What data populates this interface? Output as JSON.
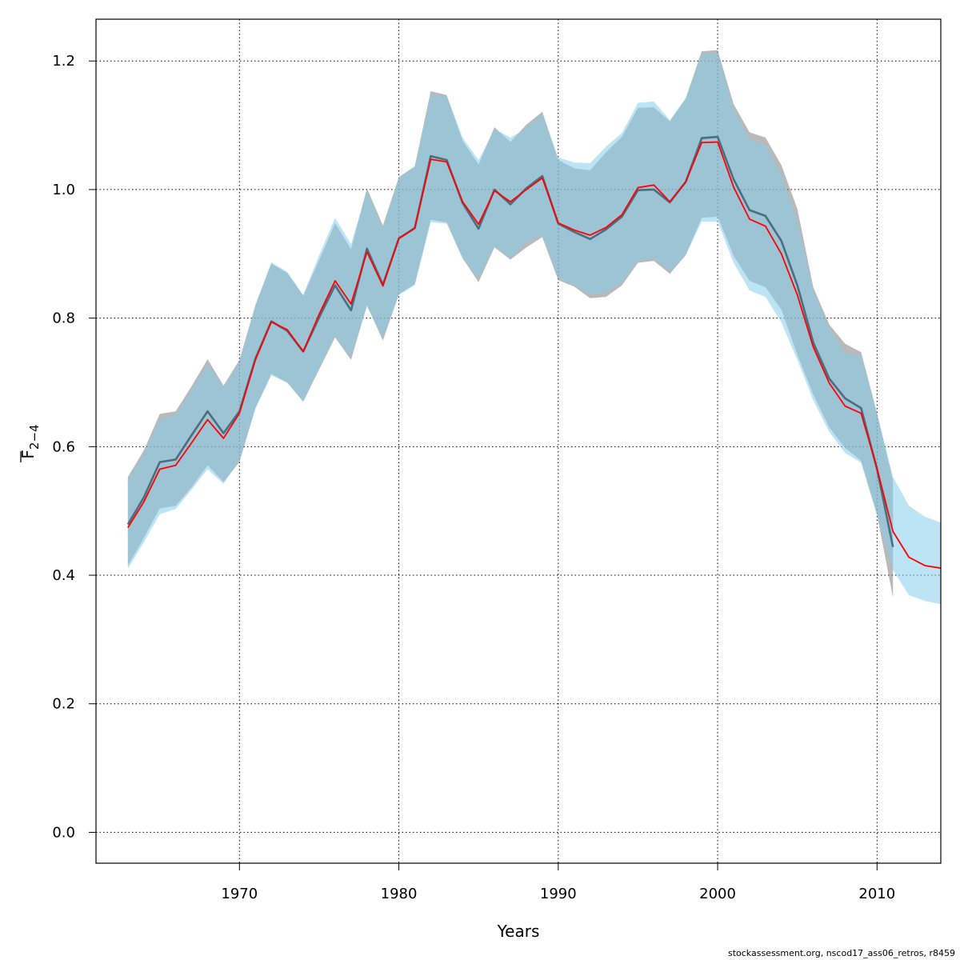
{
  "chart_data": {
    "type": "line",
    "xlabel": "Years",
    "ylabel": {
      "base": "F",
      "subscript": "2−4"
    },
    "xlim": [
      1961,
      2014
    ],
    "ylim": [
      -0.048,
      1.265
    ],
    "xticks": [
      1970,
      1980,
      1990,
      2000,
      2010
    ],
    "yticks": [
      "0.0",
      "0.2",
      "0.4",
      "0.6",
      "0.8",
      "1.0",
      "1.2"
    ],
    "grid": true,
    "colors": {
      "band_current": "#87CEEB",
      "band_previous": "#808080",
      "line_current": "#FF0000",
      "line_previous": "#4A6E80"
    },
    "series": [
      {
        "x": [
          1963,
          1964,
          1965,
          1966,
          1967,
          1968,
          1969,
          1970,
          1971,
          1972,
          1973,
          1974,
          1975,
          1976,
          1977,
          1978,
          1979,
          1980,
          1981,
          1982,
          1983,
          1984,
          1985,
          1986,
          1987,
          1988,
          1989,
          1990,
          1991,
          1992,
          1993,
          1994,
          1995,
          1996,
          1997,
          1998,
          1999,
          2000,
          2001,
          2002,
          2003,
          2004,
          2005,
          2006,
          2007,
          2008,
          2009,
          2010,
          2011
        ],
        "values": [
          0.479,
          0.521,
          0.576,
          0.58,
          0.618,
          0.655,
          0.621,
          0.655,
          0.737,
          0.795,
          0.78,
          0.748,
          0.801,
          0.851,
          0.812,
          0.908,
          0.852,
          0.924,
          0.94,
          1.052,
          1.046,
          0.979,
          0.939,
          1.0,
          0.977,
          1.002,
          1.021,
          0.947,
          0.934,
          0.923,
          0.938,
          0.958,
          0.999,
          1.0,
          0.98,
          1.012,
          1.08,
          1.082,
          1.016,
          0.968,
          0.959,
          0.92,
          0.851,
          0.762,
          0.706,
          0.675,
          0.66,
          0.565,
          0.444
        ],
        "lower": [
          0.415,
          0.458,
          0.504,
          0.508,
          0.537,
          0.571,
          0.545,
          0.576,
          0.66,
          0.713,
          0.7,
          0.67,
          0.72,
          0.77,
          0.735,
          0.82,
          0.765,
          0.837,
          0.853,
          0.953,
          0.949,
          0.893,
          0.856,
          0.91,
          0.891,
          0.91,
          0.926,
          0.859,
          0.849,
          0.831,
          0.833,
          0.851,
          0.886,
          0.889,
          0.869,
          0.898,
          0.956,
          0.958,
          0.897,
          0.858,
          0.848,
          0.813,
          0.743,
          0.681,
          0.63,
          0.598,
          0.578,
          0.494,
          0.365
        ],
        "upper": [
          0.553,
          0.594,
          0.651,
          0.655,
          0.694,
          0.736,
          0.695,
          0.735,
          0.82,
          0.885,
          0.87,
          0.835,
          0.89,
          0.948,
          0.907,
          1.002,
          0.944,
          1.019,
          1.036,
          1.153,
          1.147,
          1.076,
          1.039,
          1.097,
          1.074,
          1.101,
          1.121,
          1.046,
          1.033,
          1.03,
          1.058,
          1.082,
          1.127,
          1.128,
          1.106,
          1.142,
          1.215,
          1.217,
          1.133,
          1.089,
          1.081,
          1.038,
          0.97,
          0.848,
          0.79,
          0.76,
          0.747,
          0.652,
          0.548
        ]
      },
      {
        "x": [
          1963,
          1964,
          1965,
          1966,
          1967,
          1968,
          1969,
          1970,
          1971,
          1972,
          1973,
          1974,
          1975,
          1976,
          1977,
          1978,
          1979,
          1980,
          1981,
          1982,
          1983,
          1984,
          1985,
          1986,
          1987,
          1988,
          1989,
          1990,
          1991,
          1992,
          1993,
          1994,
          1995,
          1996,
          1997,
          1998,
          1999,
          2000,
          2001,
          2002,
          2003,
          2004,
          2005,
          2006,
          2007,
          2008,
          2009,
          2010,
          2011,
          2012,
          2013,
          2014
        ],
        "values": [
          0.474,
          0.514,
          0.565,
          0.571,
          0.606,
          0.642,
          0.613,
          0.652,
          0.735,
          0.794,
          0.782,
          0.748,
          0.806,
          0.858,
          0.822,
          0.903,
          0.85,
          0.924,
          0.94,
          1.047,
          1.043,
          0.981,
          0.946,
          0.998,
          0.981,
          1.0,
          1.018,
          0.948,
          0.937,
          0.929,
          0.941,
          0.961,
          1.003,
          1.007,
          0.981,
          1.012,
          1.073,
          1.074,
          1.004,
          0.954,
          0.943,
          0.9,
          0.836,
          0.755,
          0.699,
          0.663,
          0.652,
          0.566,
          0.468,
          0.428,
          0.415,
          0.411
        ],
        "lower": [
          0.41,
          0.451,
          0.495,
          0.503,
          0.533,
          0.565,
          0.542,
          0.579,
          0.659,
          0.711,
          0.699,
          0.67,
          0.722,
          0.772,
          0.74,
          0.818,
          0.77,
          0.836,
          0.851,
          0.949,
          0.947,
          0.893,
          0.862,
          0.912,
          0.893,
          0.917,
          0.929,
          0.862,
          0.851,
          0.836,
          0.84,
          0.856,
          0.888,
          0.893,
          0.872,
          0.898,
          0.95,
          0.95,
          0.886,
          0.843,
          0.833,
          0.793,
          0.735,
          0.672,
          0.623,
          0.59,
          0.575,
          0.493,
          0.408,
          0.369,
          0.36,
          0.355
        ],
        "upper": [
          0.548,
          0.589,
          0.643,
          0.65,
          0.689,
          0.728,
          0.693,
          0.731,
          0.82,
          0.887,
          0.872,
          0.836,
          0.898,
          0.956,
          0.915,
          0.998,
          0.94,
          1.02,
          1.036,
          1.148,
          1.146,
          1.081,
          1.046,
          1.094,
          1.081,
          1.095,
          1.118,
          1.05,
          1.042,
          1.041,
          1.067,
          1.088,
          1.135,
          1.137,
          1.108,
          1.142,
          1.211,
          1.213,
          1.126,
          1.078,
          1.069,
          1.023,
          0.951,
          0.843,
          0.785,
          0.746,
          0.741,
          0.651,
          0.553,
          0.508,
          0.491,
          0.482
        ]
      }
    ]
  },
  "credit": "stockassessment.org, nscod17_ass06_retros, r8459"
}
